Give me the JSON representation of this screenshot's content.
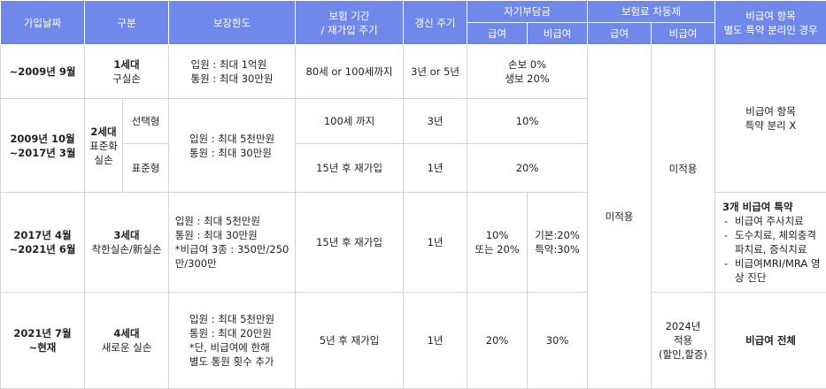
{
  "table": {
    "header": [
      "가입날짜",
      "구분",
      "보장한도",
      [
        "보험 기간",
        "/ 재가입 주기"
      ],
      "갱신 주기",
      "자기부담금",
      "보험료 차등제",
      [
        "비급여 항목",
        "별도 특약 분리인 경우"
      ]
    ],
    "subheader": [
      "급여",
      "비급여",
      "급여",
      "비급여"
    ],
    "rows": [
      [
        "~2009년 9월",
        [
          "1세대",
          "구실손"
        ],
        [
          "입원 : 최대 1억원",
          "통원 : 최대 30만원"
        ],
        "80세 or 100세까지",
        "3년 or 5년",
        [
          "손보 0%",
          "생보 20%"
        ],
        "미적용",
        "미적용",
        [
          "비급여 항목",
          "특약 분리 X"
        ]
      ],
      [
        [
          "2009년 10월",
          "~2017년 3월"
        ],
        [
          "2세대",
          "표준화",
          "실손"
        ],
        "선택형",
        [
          "입원 : 최대 5천만원",
          "통원 : 최대 30만원"
        ],
        "100세 까지",
        "3년",
        "10%"
      ],
      [
        "표준형",
        "15년 후 재가입",
        "1년",
        "20%"
      ],
      [
        [
          "2017년 4월",
          "~2021년 6월"
        ],
        [
          "3세대",
          "착한실손/新실손"
        ],
        [
          "입원 : 최대 5천만원",
          "통원 : 최대 30만원",
          "*비급여 3종 : 350만/250",
          "만/300만"
        ],
        "15년 후 재가입",
        "1년",
        [
          "10%",
          "또는 20%"
        ],
        [
          "기본:20%",
          "특약:30%"
        ],
        {
          "title": "3개 비급여 특약",
          "items": [
            "비급여 주사치료",
            [
              "도수치료, 체외충격",
              "파치료, 증식치료"
            ],
            [
              "비급여MRI/MRA 영",
              "상 진단"
            ]
          ]
        }
      ],
      [
        [
          "2021년 7월",
          "~현재"
        ],
        [
          "4세대",
          "새로운 실손"
        ],
        [
          "입원 : 최대 5천만원",
          "통원 : 최대 20만원",
          "*단, 비급여에 한해",
          "별도 통원 횟수 추가"
        ],
        "5년 후 재가입",
        "1년",
        "20%",
        "30%",
        [
          "2024년",
          "적용",
          "(할인,할증)"
        ],
        "비급여 전체"
      ]
    ]
  }
}
